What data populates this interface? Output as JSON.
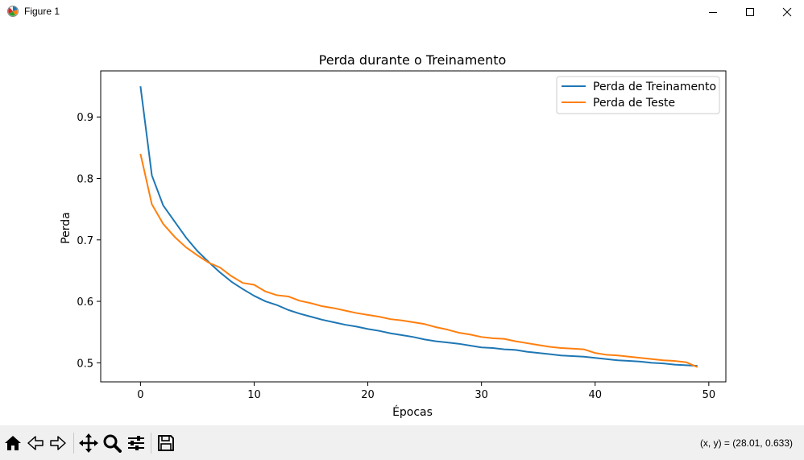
{
  "window": {
    "title": "Figure 1",
    "icon": "matplotlib-figure-icon",
    "controls": [
      "minimize-icon",
      "maximize-icon",
      "close-icon"
    ]
  },
  "chart_data": {
    "type": "line",
    "title": "Perda durante o Treinamento",
    "xlabel": "Épocas",
    "ylabel": "Perda",
    "xlim": [
      -3.5,
      51.5
    ],
    "ylim": [
      0.469,
      0.975
    ],
    "xticks": [
      "0",
      "10",
      "20",
      "30",
      "40",
      "50"
    ],
    "yticks": [
      "0.5",
      "0.6",
      "0.7",
      "0.8",
      "0.9"
    ],
    "xtick_values": [
      0,
      10,
      20,
      30,
      40,
      50
    ],
    "ytick_values": [
      0.5,
      0.6,
      0.7,
      0.8,
      0.9
    ],
    "grid": false,
    "legend": "top-right",
    "series": [
      {
        "name": "Perda de Treinamento",
        "color": "#1f77b4",
        "x": [
          0,
          1,
          2,
          3,
          4,
          5,
          6,
          7,
          8,
          9,
          10,
          11,
          12,
          13,
          14,
          15,
          16,
          17,
          18,
          19,
          20,
          21,
          22,
          23,
          24,
          25,
          26,
          27,
          28,
          29,
          30,
          31,
          32,
          33,
          34,
          35,
          36,
          37,
          38,
          39,
          40,
          41,
          42,
          43,
          44,
          45,
          46,
          47,
          48,
          49
        ],
        "values": [
          0.95,
          0.805,
          0.756,
          0.73,
          0.704,
          0.682,
          0.664,
          0.647,
          0.632,
          0.62,
          0.609,
          0.6,
          0.594,
          0.586,
          0.58,
          0.575,
          0.57,
          0.566,
          0.562,
          0.559,
          0.555,
          0.552,
          0.548,
          0.545,
          0.542,
          0.538,
          0.535,
          0.533,
          0.531,
          0.528,
          0.525,
          0.524,
          0.522,
          0.521,
          0.518,
          0.516,
          0.514,
          0.512,
          0.511,
          0.51,
          0.508,
          0.506,
          0.504,
          0.503,
          0.502,
          0.5,
          0.499,
          0.497,
          0.496,
          0.495
        ]
      },
      {
        "name": "Perda de Teste",
        "color": "#ff7f0e",
        "x": [
          0,
          1,
          2,
          3,
          4,
          5,
          6,
          7,
          8,
          9,
          10,
          11,
          12,
          13,
          14,
          15,
          16,
          17,
          18,
          19,
          20,
          21,
          22,
          23,
          24,
          25,
          26,
          27,
          28,
          29,
          30,
          31,
          32,
          33,
          34,
          35,
          36,
          37,
          38,
          39,
          40,
          41,
          42,
          43,
          44,
          45,
          46,
          47,
          48,
          49
        ],
        "values": [
          0.84,
          0.758,
          0.726,
          0.705,
          0.688,
          0.675,
          0.663,
          0.655,
          0.641,
          0.63,
          0.627,
          0.616,
          0.61,
          0.608,
          0.601,
          0.597,
          0.592,
          0.589,
          0.585,
          0.581,
          0.578,
          0.575,
          0.571,
          0.569,
          0.566,
          0.563,
          0.558,
          0.554,
          0.549,
          0.546,
          0.542,
          0.54,
          0.539,
          0.535,
          0.532,
          0.529,
          0.526,
          0.524,
          0.523,
          0.522,
          0.516,
          0.513,
          0.512,
          0.51,
          0.508,
          0.506,
          0.504,
          0.503,
          0.501,
          0.493
        ]
      }
    ]
  },
  "toolbar": {
    "buttons": [
      {
        "icon": "home-icon"
      },
      {
        "icon": "back-arrow-icon"
      },
      {
        "icon": "forward-arrow-icon"
      },
      {
        "icon": "pan-move-icon"
      },
      {
        "icon": "zoom-magnifier-icon"
      },
      {
        "icon": "configure-subplots-icon"
      },
      {
        "icon": "save-floppy-icon"
      }
    ],
    "coords": "(x, y) = (28.01, 0.633)"
  }
}
